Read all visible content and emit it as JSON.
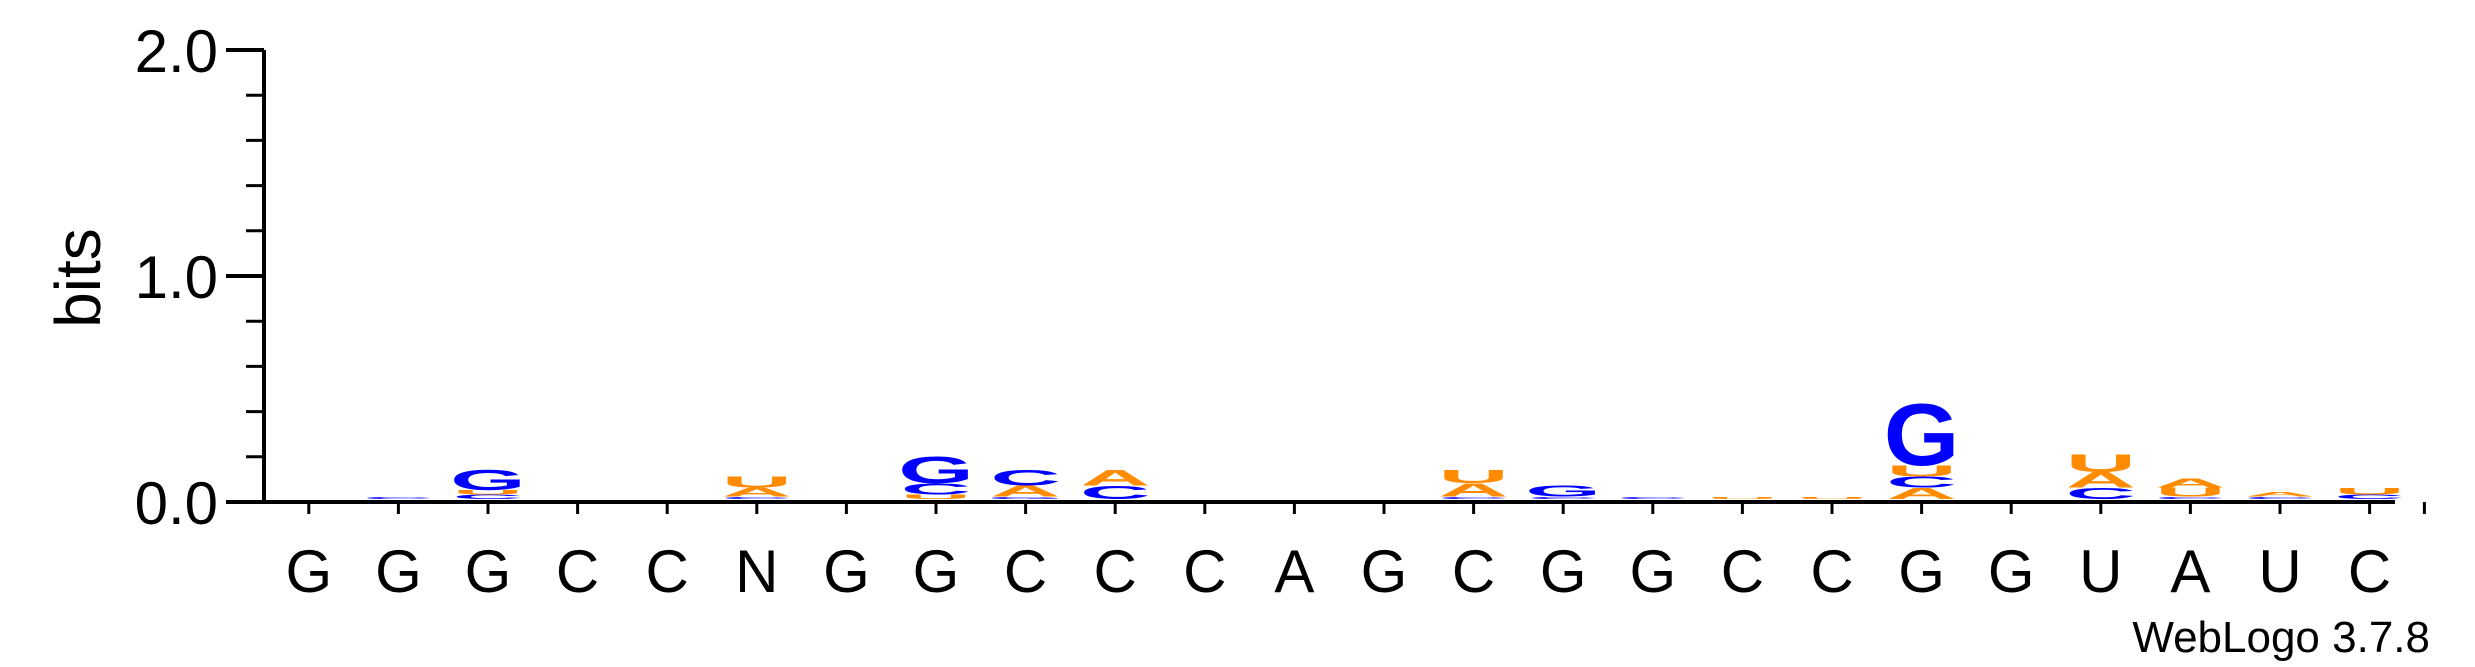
{
  "chart_data": {
    "type": "sequence-logo",
    "ylabel": "bits",
    "ylim": [
      0,
      2.0
    ],
    "yticks": [
      "0.0",
      "1.0",
      "2.0"
    ],
    "positions": [
      "G",
      "G",
      "G",
      "C",
      "C",
      "N",
      "G",
      "G",
      "C",
      "C",
      "C",
      "A",
      "G",
      "C",
      "G",
      "G",
      "C",
      "C",
      "G",
      "G",
      "U",
      "A",
      "U",
      "C"
    ],
    "stacks": [
      [],
      [
        {
          "letter": "C",
          "bits": 0.01
        }
      ],
      [
        {
          "letter": "G",
          "bits": 0.09
        },
        {
          "letter": "C",
          "bits": 0.02
        },
        {
          "letter": "U",
          "bits": 0.02
        }
      ],
      [],
      [],
      [
        {
          "letter": "U",
          "bits": 0.05
        },
        {
          "letter": "A",
          "bits": 0.04
        },
        {
          "letter": "C",
          "bits": 0.01
        }
      ],
      [],
      [
        {
          "letter": "G",
          "bits": 0.12
        },
        {
          "letter": "C",
          "bits": 0.05
        },
        {
          "letter": "U",
          "bits": 0.02
        }
      ],
      [
        {
          "letter": "C",
          "bits": 0.07
        },
        {
          "letter": "A",
          "bits": 0.05
        },
        {
          "letter": "G",
          "bits": 0.01
        }
      ],
      [
        {
          "letter": "A",
          "bits": 0.07
        },
        {
          "letter": "C",
          "bits": 0.06
        }
      ],
      [],
      [],
      [],
      [
        {
          "letter": "A",
          "bits": 0.06
        },
        {
          "letter": "U",
          "bits": 0.06
        },
        {
          "letter": "C",
          "bits": 0.01
        }
      ],
      [
        {
          "letter": "G",
          "bits": 0.05
        },
        {
          "letter": "C",
          "bits": 0.01
        }
      ],
      [
        {
          "letter": "C",
          "bits": 0.01
        }
      ],
      [
        {
          "letter": "U",
          "bits": 0.01
        }
      ],
      [
        {
          "letter": "U",
          "bits": 0.01
        }
      ],
      [
        {
          "letter": "G",
          "bits": 0.28
        },
        {
          "letter": "A",
          "bits": 0.05
        },
        {
          "letter": "C",
          "bits": 0.05
        },
        {
          "letter": "U",
          "bits": 0.05
        }
      ],
      [],
      [
        {
          "letter": "U",
          "bits": 0.08
        },
        {
          "letter": "A",
          "bits": 0.07
        },
        {
          "letter": "C",
          "bits": 0.05
        }
      ],
      [
        {
          "letter": "U",
          "bits": 0.04
        },
        {
          "letter": "A",
          "bits": 0.04
        },
        {
          "letter": "C",
          "bits": 0.01
        }
      ],
      [
        {
          "letter": "A",
          "bits": 0.02
        },
        {
          "letter": "C",
          "bits": 0.01
        }
      ],
      [
        {
          "letter": "U",
          "bits": 0.03
        },
        {
          "letter": "C",
          "bits": 0.02
        }
      ]
    ],
    "colors": {
      "G": "#0000ff",
      "C": "#0000ff",
      "A": "#ff8c00",
      "U": "#ff8c00",
      "N": "#000000"
    },
    "grid": false,
    "legend": "none"
  },
  "footer": {
    "credit": "WebLogo 3.7.8"
  }
}
